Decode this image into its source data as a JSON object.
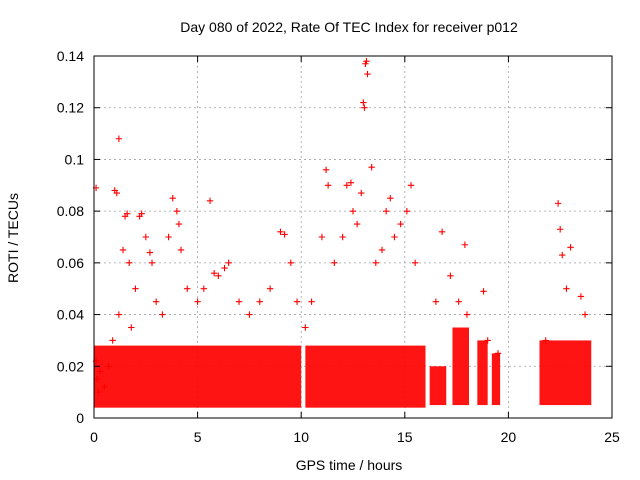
{
  "chart_data": {
    "type": "scatter",
    "title": "Day 080 of 2022, Rate Of TEC Index for receiver p012",
    "xlabel": "GPS time / hours",
    "ylabel": "ROTI / TECUs",
    "xlim": [
      0,
      25
    ],
    "ylim": [
      0,
      0.14
    ],
    "xticks": [
      0,
      5,
      10,
      15,
      20,
      25
    ],
    "yticks": [
      0,
      0.02,
      0.04,
      0.06,
      0.08,
      0.1,
      0.12,
      0.14
    ],
    "ytick_labels": [
      "0",
      "0.02",
      "0.04",
      "0.06",
      "0.08",
      "0.1",
      "0.12",
      "0.14"
    ],
    "grid": true,
    "marker": "+",
    "marker_color": "#ff0000",
    "series": [
      {
        "points": [
          [
            0.1,
            0.089
          ],
          [
            0.1,
            0.022
          ],
          [
            0.15,
            0.015
          ],
          [
            0.2,
            0.01
          ],
          [
            0.3,
            0.018
          ],
          [
            0.5,
            0.012
          ],
          [
            0.7,
            0.02
          ],
          [
            0.9,
            0.03
          ],
          [
            1.0,
            0.088
          ],
          [
            1.1,
            0.087
          ],
          [
            1.2,
            0.108
          ],
          [
            1.2,
            0.04
          ],
          [
            1.4,
            0.065
          ],
          [
            1.5,
            0.078
          ],
          [
            1.6,
            0.079
          ],
          [
            1.7,
            0.06
          ],
          [
            1.8,
            0.035
          ],
          [
            2.0,
            0.05
          ],
          [
            2.2,
            0.078
          ],
          [
            2.3,
            0.079
          ],
          [
            2.5,
            0.07
          ],
          [
            2.7,
            0.064
          ],
          [
            2.8,
            0.06
          ],
          [
            3.0,
            0.045
          ],
          [
            3.3,
            0.04
          ],
          [
            3.6,
            0.07
          ],
          [
            3.8,
            0.085
          ],
          [
            4.0,
            0.08
          ],
          [
            4.1,
            0.075
          ],
          [
            4.2,
            0.065
          ],
          [
            4.5,
            0.05
          ],
          [
            5.0,
            0.045
          ],
          [
            5.3,
            0.05
          ],
          [
            5.6,
            0.084
          ],
          [
            5.8,
            0.056
          ],
          [
            6.0,
            0.055
          ],
          [
            6.3,
            0.058
          ],
          [
            6.5,
            0.06
          ],
          [
            7.0,
            0.045
          ],
          [
            7.5,
            0.04
          ],
          [
            8.0,
            0.045
          ],
          [
            8.5,
            0.05
          ],
          [
            9.0,
            0.072
          ],
          [
            9.2,
            0.071
          ],
          [
            9.5,
            0.06
          ],
          [
            9.8,
            0.045
          ],
          [
            10.2,
            0.035
          ],
          [
            10.5,
            0.045
          ],
          [
            11.0,
            0.07
          ],
          [
            11.2,
            0.096
          ],
          [
            11.3,
            0.09
          ],
          [
            11.6,
            0.06
          ],
          [
            12.0,
            0.07
          ],
          [
            12.2,
            0.09
          ],
          [
            12.4,
            0.091
          ],
          [
            12.5,
            0.08
          ],
          [
            12.7,
            0.075
          ],
          [
            12.9,
            0.087
          ],
          [
            13.0,
            0.122
          ],
          [
            13.05,
            0.12
          ],
          [
            13.1,
            0.137
          ],
          [
            13.15,
            0.138
          ],
          [
            13.2,
            0.133
          ],
          [
            13.4,
            0.097
          ],
          [
            13.6,
            0.06
          ],
          [
            13.9,
            0.065
          ],
          [
            14.1,
            0.08
          ],
          [
            14.3,
            0.085
          ],
          [
            14.5,
            0.07
          ],
          [
            14.8,
            0.075
          ],
          [
            15.1,
            0.08
          ],
          [
            15.3,
            0.09
          ],
          [
            15.5,
            0.06
          ],
          [
            16.5,
            0.045
          ],
          [
            16.8,
            0.072
          ],
          [
            17.2,
            0.055
          ],
          [
            17.6,
            0.045
          ],
          [
            17.9,
            0.067
          ],
          [
            18.0,
            0.04
          ],
          [
            18.8,
            0.049
          ],
          [
            19.0,
            0.03
          ],
          [
            19.5,
            0.025
          ],
          [
            21.8,
            0.03
          ],
          [
            22.4,
            0.083
          ],
          [
            22.5,
            0.073
          ],
          [
            22.6,
            0.063
          ],
          [
            22.8,
            0.05
          ],
          [
            23.0,
            0.066
          ],
          [
            23.5,
            0.047
          ],
          [
            23.7,
            0.04
          ]
        ]
      }
    ],
    "bands": [
      {
        "x_from": 0.0,
        "x_to": 10.0,
        "low": 0.004,
        "high": 0.028
      },
      {
        "x_from": 10.2,
        "x_to": 16.0,
        "low": 0.004,
        "high": 0.028
      },
      {
        "x_from": 16.2,
        "x_to": 17.0,
        "low": 0.005,
        "high": 0.02
      },
      {
        "x_from": 17.3,
        "x_to": 18.1,
        "low": 0.005,
        "high": 0.035
      },
      {
        "x_from": 18.5,
        "x_to": 19.0,
        "low": 0.005,
        "high": 0.03
      },
      {
        "x_from": 19.2,
        "x_to": 19.6,
        "low": 0.005,
        "high": 0.025
      },
      {
        "x_from": 21.5,
        "x_to": 24.0,
        "low": 0.005,
        "high": 0.03
      }
    ]
  }
}
